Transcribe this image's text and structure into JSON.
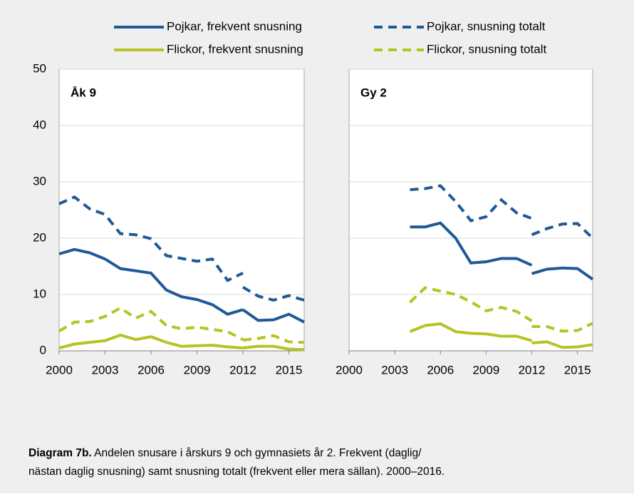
{
  "chart_data": [
    {
      "type": "line",
      "panel_label": "Åk 9",
      "x": [
        2000,
        2001,
        2002,
        2003,
        2004,
        2005,
        2006,
        2007,
        2008,
        2009,
        2010,
        2011,
        2012,
        2012,
        2012,
        2013,
        2014,
        2015,
        2016
      ],
      "xlim": [
        2000,
        2016
      ],
      "xticks": [
        2000,
        2003,
        2006,
        2009,
        2012,
        2015
      ],
      "ylim": [
        0,
        50
      ],
      "yticks": [
        0,
        10,
        20,
        30,
        40,
        50
      ],
      "grid": true,
      "series": [
        {
          "name": "Pojkar, frekvent snusning",
          "color": "#1f5a96",
          "dashed": false,
          "values": [
            17.2,
            18.0,
            17.4,
            16.3,
            14.6,
            14.2,
            13.8,
            10.8,
            9.6,
            9.1,
            8.2,
            6.5,
            7.3,
            null,
            7.3,
            5.4,
            5.5,
            6.5,
            5.1
          ]
        },
        {
          "name": "Pojkar, snusning totalt",
          "color": "#1f5a96",
          "dashed": true,
          "values": [
            26.1,
            27.3,
            25.2,
            24.2,
            20.8,
            20.6,
            19.9,
            16.9,
            16.4,
            15.9,
            16.3,
            12.5,
            13.8,
            null,
            11.3,
            9.7,
            9.0,
            9.8,
            9.0
          ]
        },
        {
          "name": "Flickor, frekvent snusning",
          "color": "#b5c422",
          "dashed": false,
          "values": [
            0.5,
            1.2,
            1.5,
            1.8,
            2.8,
            2.0,
            2.5,
            1.5,
            0.8,
            0.9,
            1.0,
            0.7,
            0.5,
            null,
            0.5,
            0.8,
            0.8,
            0.3,
            0.2
          ]
        },
        {
          "name": "Flickor, snusning totalt",
          "color": "#b5c422",
          "dashed": true,
          "values": [
            3.5,
            5.1,
            5.2,
            6.1,
            7.6,
            5.8,
            7.0,
            4.5,
            3.9,
            4.2,
            3.8,
            3.4,
            2.0,
            null,
            1.9,
            2.2,
            2.7,
            1.6,
            1.5
          ]
        }
      ]
    },
    {
      "type": "line",
      "panel_label": "Gy 2",
      "x": [
        2004,
        2005,
        2006,
        2007,
        2008,
        2009,
        2010,
        2011,
        2012,
        2012,
        2012,
        2013,
        2014,
        2015,
        2016
      ],
      "xlim": [
        2000,
        2016
      ],
      "xticks": [
        2000,
        2003,
        2006,
        2009,
        2012,
        2015
      ],
      "ylim": [
        0,
        50
      ],
      "yticks": [
        0,
        10,
        20,
        30,
        40,
        50
      ],
      "grid": true,
      "series": [
        {
          "color": "#1f5a96",
          "dashed": false,
          "values": [
            22.0,
            22.0,
            22.7,
            20.0,
            15.6,
            15.8,
            16.4,
            16.4,
            15.2,
            null,
            13.7,
            14.5,
            14.7,
            14.6,
            12.7
          ]
        },
        {
          "color": "#1f5a96",
          "dashed": true,
          "values": [
            28.6,
            28.8,
            29.3,
            26.5,
            23.1,
            23.8,
            26.8,
            24.5,
            23.5,
            null,
            20.6,
            21.7,
            22.5,
            22.6,
            20.0
          ]
        },
        {
          "color": "#b5c422",
          "dashed": false,
          "values": [
            3.4,
            4.5,
            4.8,
            3.4,
            3.1,
            3.0,
            2.6,
            2.6,
            1.8,
            null,
            1.4,
            1.6,
            0.6,
            0.7,
            1.1
          ]
        },
        {
          "color": "#b5c422",
          "dashed": true,
          "values": [
            8.6,
            11.2,
            10.6,
            10.0,
            8.7,
            7.1,
            7.7,
            7.0,
            5.3,
            null,
            4.3,
            4.3,
            3.5,
            3.6,
            4.9
          ]
        }
      ]
    }
  ],
  "caption": {
    "label": "Diagram 7b.",
    "line1": " Andelen snusare i årskurs 9 och gymnasiets år 2. Frekvent (daglig/",
    "line2": "nästan daglig snusning) samt snusning totalt (frekvent eller mera sällan). 2000–2016."
  }
}
